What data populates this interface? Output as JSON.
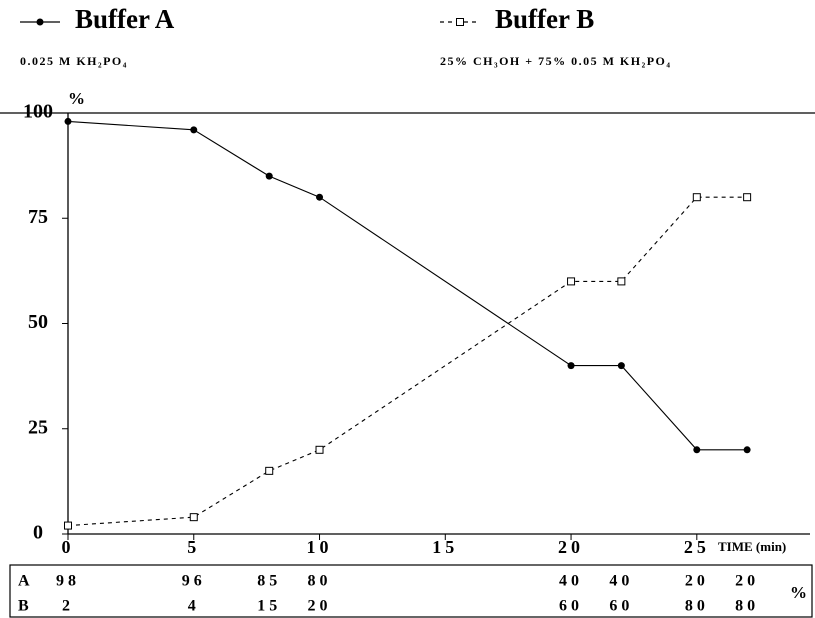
{
  "chart_data": {
    "type": "line",
    "y_label": "%",
    "x_label": "TIME (min)",
    "x": [
      0,
      5,
      8,
      10,
      20,
      22,
      25,
      27
    ],
    "series": [
      {
        "name": "Buffer A",
        "description": "0.025 M KH₂PO₄",
        "color": "#000000",
        "dash": false,
        "marker": "circle",
        "values": [
          98,
          96,
          85,
          80,
          40,
          40,
          20,
          20
        ]
      },
      {
        "name": "Buffer B",
        "description": "25% CH₃OH + 75% 0.05 M KH₂PO₄",
        "color": "#000000",
        "dash": true,
        "marker": "square",
        "values": [
          2,
          4,
          15,
          20,
          60,
          60,
          80,
          80
        ]
      }
    ],
    "xlim": [
      0,
      29.5
    ],
    "ylim": [
      0,
      100
    ],
    "xticks": [
      0,
      5,
      10,
      15,
      20,
      25
    ],
    "yticks": [
      0,
      25,
      50,
      75,
      100
    ],
    "table_row_labels": [
      "A",
      "B"
    ],
    "table_unit": "%"
  }
}
